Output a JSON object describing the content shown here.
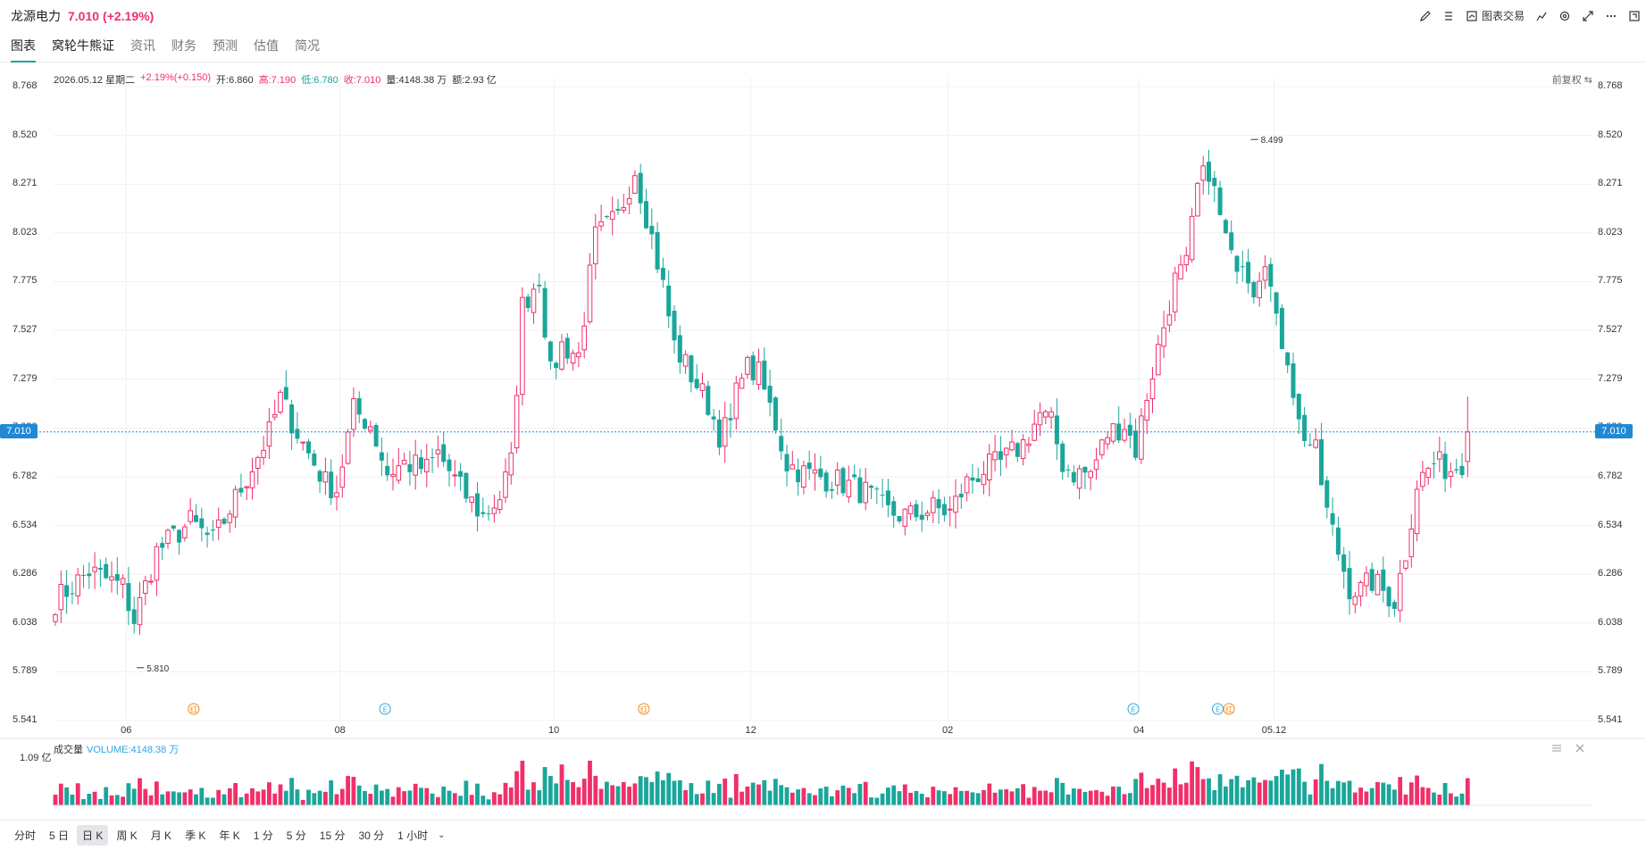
{
  "header": {
    "stock_name": "龙源电力",
    "price": "7.010",
    "change": "(+2.19%)",
    "toolbar": {
      "chart_trade_label": "图表交易",
      "icons": [
        "pencil-icon",
        "list-icon",
        "trade-icon",
        "indicator-icon",
        "gear-icon",
        "expand-icon",
        "more-icon",
        "fullscreen-icon"
      ]
    }
  },
  "tabs": [
    "图表",
    "窝轮牛熊证",
    "资讯",
    "财务",
    "预测",
    "估值",
    "简况"
  ],
  "infobar": {
    "date": "2026.05.12 星期二",
    "change": "+2.19%(+0.150)",
    "open": "开:6.860",
    "high": "高:7.190",
    "low": "低:6.780",
    "close": "收:7.010",
    "volume": "量:4148.38 万",
    "amount": "额:2.93 亿",
    "adjust": "前复权"
  },
  "volume_panel": {
    "title": "成交量",
    "value": "VOLUME:4148.38 万",
    "axis_label": "1.09 亿"
  },
  "current_price_tag": "7.010",
  "periods": [
    "分时",
    "5 日",
    "日 K",
    "周 K",
    "月 K",
    "季 K",
    "年 K",
    "1 分",
    "5 分",
    "15 分",
    "30 分",
    "1 小时"
  ],
  "active_period": "日 K",
  "colors": {
    "up": "#f0306a",
    "down": "#1aa69a",
    "accent": "#1aa6a0",
    "tag": "#2188d6"
  },
  "chart_data": {
    "type": "candlestick",
    "y_ticks": [
      8.768,
      8.52,
      8.271,
      8.023,
      7.775,
      7.527,
      7.279,
      7.03,
      6.782,
      6.534,
      6.286,
      6.038,
      5.789,
      5.541
    ],
    "ylim": [
      5.541,
      8.768
    ],
    "x_ticks": [
      "06",
      "08",
      "10",
      "12",
      "02",
      "04",
      "05.12"
    ],
    "annotations": [
      {
        "label": "8.499",
        "kind": "high",
        "value": 8.499
      },
      {
        "label": "5.810",
        "kind": "low",
        "value": 5.81
      }
    ],
    "event_markers": [
      {
        "label": "红",
        "color": "#f08a1d"
      },
      {
        "label": "E",
        "color": "#2ea8e0"
      },
      {
        "label": "红",
        "color": "#f08a1d"
      },
      {
        "label": "E",
        "color": "#2ea8e0"
      },
      {
        "label": "E",
        "color": "#2ea8e0"
      },
      {
        "label": "红",
        "color": "#f08a1d"
      }
    ],
    "keypoints": [
      [
        0,
        6.15
      ],
      [
        6,
        6.3
      ],
      [
        12,
        6.22
      ],
      [
        14,
        6.05
      ],
      [
        18,
        6.4
      ],
      [
        24,
        6.55
      ],
      [
        28,
        6.45
      ],
      [
        34,
        6.78
      ],
      [
        38,
        7.0
      ],
      [
        40,
        7.18
      ],
      [
        44,
        6.95
      ],
      [
        48,
        6.75
      ],
      [
        50,
        6.72
      ],
      [
        53,
        7.12
      ],
      [
        56,
        7.05
      ],
      [
        59,
        6.8
      ],
      [
        62,
        6.85
      ],
      [
        66,
        6.82
      ],
      [
        68,
        6.9
      ],
      [
        72,
        6.72
      ],
      [
        76,
        6.58
      ],
      [
        79,
        6.68
      ],
      [
        81,
        6.85
      ],
      [
        83,
        7.65
      ],
      [
        86,
        7.8
      ],
      [
        88,
        7.3
      ],
      [
        90,
        7.45
      ],
      [
        93,
        7.4
      ],
      [
        96,
        8.0
      ],
      [
        100,
        8.1
      ],
      [
        103,
        8.35
      ],
      [
        106,
        8.0
      ],
      [
        108,
        7.75
      ],
      [
        110,
        7.45
      ],
      [
        113,
        7.3
      ],
      [
        116,
        7.15
      ],
      [
        118,
        7.0
      ],
      [
        120,
        7.05
      ],
      [
        122,
        7.35
      ],
      [
        125,
        7.3
      ],
      [
        128,
        7.05
      ],
      [
        130,
        6.85
      ],
      [
        133,
        6.8
      ],
      [
        136,
        6.78
      ],
      [
        140,
        6.75
      ],
      [
        144,
        6.7
      ],
      [
        148,
        6.6
      ],
      [
        152,
        6.58
      ],
      [
        156,
        6.62
      ],
      [
        159,
        6.6
      ],
      [
        162,
        6.75
      ],
      [
        165,
        6.82
      ],
      [
        168,
        6.85
      ],
      [
        172,
        6.95
      ],
      [
        175,
        7.1
      ],
      [
        177,
        7.05
      ],
      [
        179,
        6.85
      ],
      [
        181,
        6.8
      ],
      [
        184,
        6.8
      ],
      [
        187,
        7.0
      ],
      [
        190,
        7.05
      ],
      [
        192,
        6.92
      ],
      [
        194,
        7.2
      ],
      [
        197,
        7.55
      ],
      [
        199,
        7.78
      ],
      [
        201,
        7.85
      ],
      [
        203,
        8.25
      ],
      [
        205,
        8.35
      ],
      [
        207,
        8.1
      ],
      [
        209,
        7.88
      ],
      [
        211,
        7.9
      ],
      [
        213,
        7.75
      ],
      [
        215,
        7.92
      ],
      [
        217,
        7.55
      ],
      [
        219,
        7.4
      ],
      [
        221,
        7.05
      ],
      [
        224,
        6.9
      ],
      [
        226,
        6.6
      ],
      [
        228,
        6.4
      ],
      [
        230,
        6.22
      ],
      [
        232,
        6.2
      ],
      [
        234,
        6.25
      ],
      [
        236,
        6.2
      ],
      [
        238,
        6.15
      ],
      [
        240,
        6.4
      ],
      [
        242,
        6.75
      ],
      [
        245,
        6.85
      ],
      [
        248,
        6.82
      ],
      [
        250,
        6.86
      ],
      [
        251,
        7.01
      ]
    ],
    "volume_max": "1.09 亿"
  }
}
